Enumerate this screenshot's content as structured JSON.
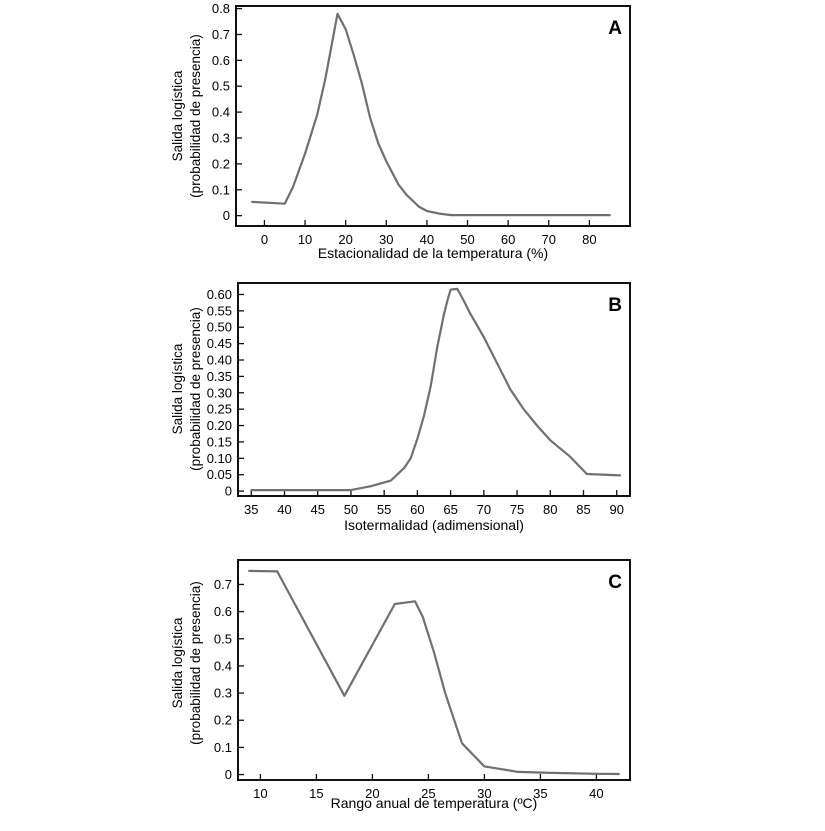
{
  "chart_data": [
    {
      "type": "line",
      "panel_label": "A",
      "xlabel": "Estacionalidad de la temperatura (%)",
      "ylabel": [
        "Salida logística",
        "(probabilidad de presencia)"
      ],
      "xlim": [
        -7,
        90
      ],
      "ylim": [
        -0.04,
        0.81
      ],
      "xticks": [
        0,
        10,
        20,
        30,
        40,
        50,
        60,
        70,
        80
      ],
      "xtick_labels": [
        "0",
        "10",
        "20",
        "30",
        "40",
        "50",
        "60",
        "70",
        "80"
      ],
      "yticks": [
        0,
        0.1,
        0.2,
        0.3,
        0.4,
        0.5,
        0.6,
        0.7,
        0.8
      ],
      "ytick_labels": [
        "0",
        "0.1",
        "0.2",
        "0.3",
        "0.4",
        "0.5",
        "0.6",
        "0.7",
        "0.8"
      ],
      "grid": false,
      "line_color": "#707070",
      "x": [
        -3,
        5,
        7,
        10,
        13,
        15,
        18,
        20,
        22,
        24,
        26,
        28,
        30,
        33,
        35,
        38,
        40,
        43,
        46,
        50,
        60,
        70,
        80,
        85
      ],
      "y": [
        0.053,
        0.046,
        0.11,
        0.24,
        0.39,
        0.53,
        0.78,
        0.72,
        0.62,
        0.51,
        0.38,
        0.28,
        0.21,
        0.12,
        0.08,
        0.035,
        0.018,
        0.008,
        0.002,
        0.002,
        0.002,
        0.002,
        0.002,
        0.002
      ]
    },
    {
      "type": "line",
      "panel_label": "B",
      "xlabel": "Isotermalidad (adimensional)",
      "ylabel": [
        "Salida logística",
        "(probabilidad de presencia)"
      ],
      "xlim": [
        33,
        92
      ],
      "ylim": [
        -0.015,
        0.635
      ],
      "xticks": [
        35,
        40,
        45,
        50,
        55,
        60,
        65,
        70,
        75,
        80,
        85,
        90
      ],
      "xtick_labels": [
        "35",
        "40",
        "45",
        "50",
        "55",
        "60",
        "65",
        "70",
        "75",
        "80",
        "85",
        "90"
      ],
      "yticks": [
        0,
        0.05,
        0.1,
        0.15,
        0.2,
        0.25,
        0.3,
        0.35,
        0.4,
        0.45,
        0.5,
        0.55,
        0.6
      ],
      "ytick_labels": [
        "0",
        "0.05",
        "0.10",
        "0.15",
        "0.20",
        "0.25",
        "0.30",
        "0.35",
        "0.40",
        "0.45",
        "0.50",
        "0.55",
        "0.60"
      ],
      "grid": false,
      "line_color": "#707070",
      "x": [
        35,
        40,
        45,
        50,
        53,
        56,
        58,
        59,
        60,
        61,
        62,
        63,
        64,
        64.5,
        65,
        66,
        67,
        68,
        70,
        72,
        74,
        76,
        78,
        80,
        83,
        85.5,
        90.5
      ],
      "y": [
        0.003,
        0.003,
        0.003,
        0.003,
        0.015,
        0.032,
        0.07,
        0.1,
        0.16,
        0.23,
        0.32,
        0.44,
        0.54,
        0.58,
        0.615,
        0.617,
        0.58,
        0.54,
        0.47,
        0.39,
        0.31,
        0.25,
        0.2,
        0.155,
        0.105,
        0.052,
        0.048
      ]
    },
    {
      "type": "line",
      "panel_label": "C",
      "xlabel": "Rango anual de temperatura (ºC)",
      "ylabel": [
        "Salida logística",
        "(probabilidad de presencia)"
      ],
      "xlim": [
        8,
        43
      ],
      "ylim": [
        -0.02,
        0.79
      ],
      "xticks": [
        10,
        15,
        20,
        25,
        30,
        35,
        40
      ],
      "xtick_labels": [
        "10",
        "15",
        "20",
        "25",
        "30",
        "35",
        "40"
      ],
      "yticks": [
        0,
        0.1,
        0.2,
        0.3,
        0.4,
        0.5,
        0.6,
        0.7
      ],
      "ytick_labels": [
        "0",
        "0.1",
        "0.2",
        "0.3",
        "0.4",
        "0.5",
        "0.6",
        "0.7"
      ],
      "grid": false,
      "line_color": "#707070",
      "x": [
        9,
        11.5,
        17.5,
        22,
        23.8,
        24.5,
        25.5,
        26.5,
        28,
        30,
        33,
        36,
        40,
        42
      ],
      "y": [
        0.75,
        0.748,
        0.29,
        0.628,
        0.638,
        0.58,
        0.45,
        0.3,
        0.115,
        0.03,
        0.01,
        0.006,
        0.003,
        0.002
      ]
    }
  ]
}
